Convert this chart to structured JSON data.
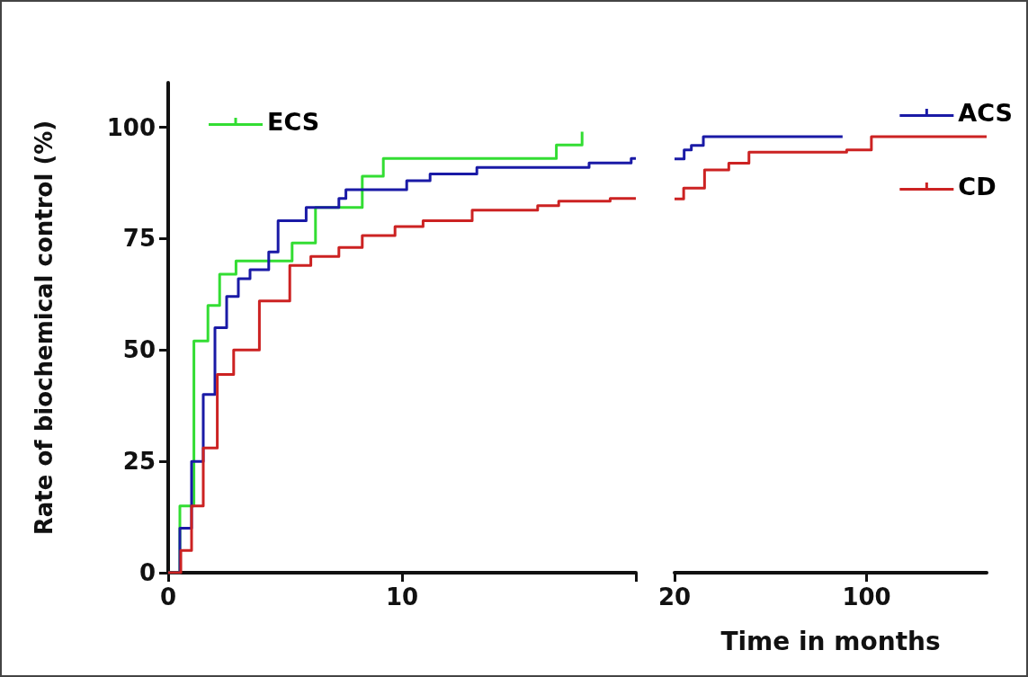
{
  "chart_data": [
    {
      "type": "step",
      "ylabel": "Rate of biochemical control (%)",
      "xlim": [
        0,
        20
      ],
      "xticks": [
        0,
        10,
        {
          "value": 20,
          "label": null
        }
      ],
      "ylim": [
        0,
        110
      ],
      "yticks": [
        0,
        25,
        50,
        75,
        100
      ],
      "grid": false,
      "legend": "top left",
      "marker": "none",
      "series": [
        {
          "name": "ECS",
          "color": "#33dd33",
          "x": [
            0,
            0.5,
            1.1,
            1.7,
            2.2,
            2.9,
            5.3,
            6.3,
            8.3,
            9.2,
            16.6,
            17.7
          ],
          "values": [
            0,
            15,
            52,
            60,
            67,
            70,
            74,
            82,
            89,
            93,
            96,
            99
          ]
        },
        {
          "color": "#1a1aa6",
          "x": [
            0,
            0.5,
            1,
            1.5,
            2,
            2.5,
            3,
            3.5,
            4.3,
            4.7,
            5.9,
            7.3,
            7.6,
            10.2,
            11.2,
            13.2,
            18,
            19.8,
            20
          ],
          "values": [
            0,
            10,
            25,
            40,
            55,
            62,
            66,
            68,
            72,
            79,
            82,
            84,
            86,
            88,
            89.5,
            91,
            92,
            93,
            93
          ]
        },
        {
          "color": "#cc2222",
          "x": [
            0,
            0.54,
            1,
            1.5,
            2.1,
            2.8,
            3.9,
            5.2,
            6.1,
            7.3,
            8.3,
            9.7,
            10.9,
            13,
            15.8,
            16.7,
            18.9,
            20
          ],
          "values": [
            0,
            5,
            15,
            28,
            44.5,
            50,
            61,
            69,
            71,
            73,
            75.7,
            77.7,
            79,
            81.4,
            82.4,
            83.4,
            84,
            84
          ]
        }
      ]
    },
    {
      "type": "step",
      "xlabel": "Time in months",
      "xlim": [
        20,
        150
      ],
      "xticks": [
        20,
        100
      ],
      "ylim": [
        0,
        100
      ],
      "yticks": [
        0,
        25,
        50,
        75,
        100
      ],
      "tick_labels": "x",
      "grid": false,
      "legend": "top right",
      "marker": "none",
      "series": [
        {
          "name": "ACS",
          "color": "#1a1aa6",
          "x": [
            20,
            24,
            27,
            32,
            90
          ],
          "values": [
            93,
            95,
            96,
            98,
            98
          ]
        },
        {
          "name": "CD",
          "color": "#cc2222",
          "x": [
            20,
            23.8,
            32.5,
            42.6,
            51,
            91.7,
            102,
            150
          ],
          "values": [
            84,
            86.4,
            90.5,
            92,
            94.5,
            95,
            98,
            98
          ]
        }
      ]
    }
  ]
}
